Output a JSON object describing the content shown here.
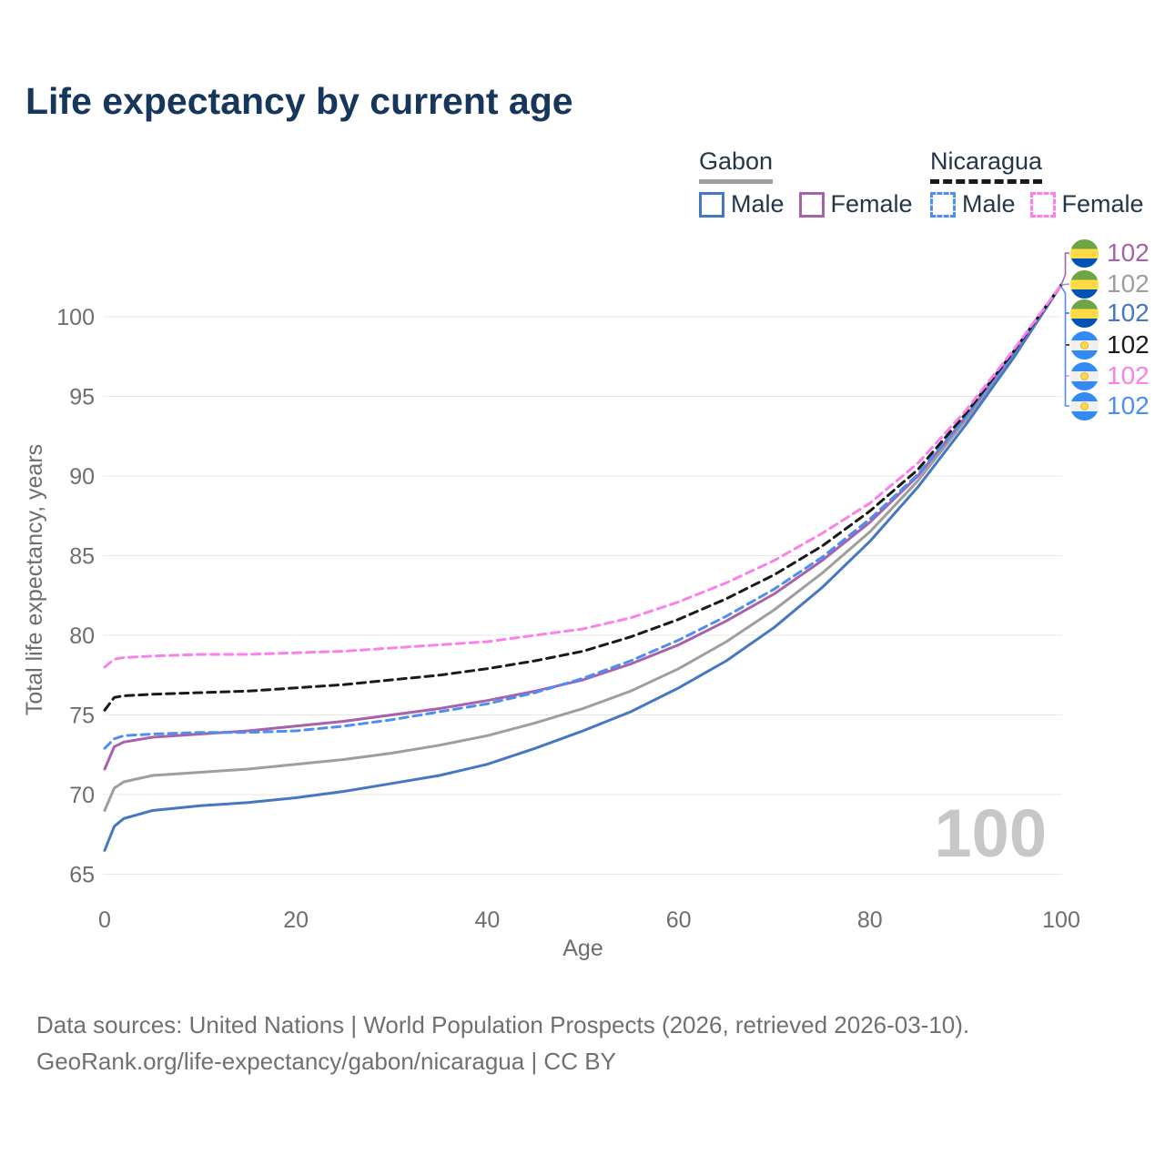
{
  "title": "Life expectancy by current age",
  "legend": {
    "groups": [
      {
        "name": "Gabon",
        "line_style": "solid",
        "underline_color": "#9e9e9e",
        "items": [
          {
            "label": "Male",
            "color": "#4577c2"
          },
          {
            "label": "Female",
            "color": "#a763a8"
          }
        ]
      },
      {
        "name": "Nicaragua",
        "line_style": "dashed",
        "underline_color": "#1a1a1a",
        "items": [
          {
            "label": "Male",
            "color": "#4d8df5"
          },
          {
            "label": "Female",
            "color": "#fb80e8"
          }
        ]
      }
    ]
  },
  "chart_data": {
    "type": "line",
    "title": "Life expectancy by current age",
    "xlabel": "Age",
    "ylabel": "Total life expectancy, years",
    "xlim": [
      0,
      100
    ],
    "ylim": [
      65,
      102.5
    ],
    "xticks": [
      0,
      20,
      40,
      60,
      80,
      100
    ],
    "yticks": [
      65,
      70,
      75,
      80,
      85,
      90,
      95,
      100
    ],
    "grid": true,
    "legend_position": "top-right",
    "watermark": "100",
    "x": [
      0,
      1,
      2,
      5,
      10,
      15,
      20,
      25,
      30,
      35,
      40,
      45,
      50,
      55,
      60,
      65,
      70,
      75,
      80,
      85,
      90,
      95,
      100
    ],
    "series": [
      {
        "id": "gabon-all",
        "name": "Gabon (both sexes)",
        "country": "Gabon",
        "flag": "gabon",
        "color": "#9e9e9e",
        "line_style": "solid",
        "end_label": "102",
        "values": [
          69.0,
          70.4,
          70.8,
          71.2,
          71.4,
          71.6,
          71.9,
          72.2,
          72.6,
          73.1,
          73.7,
          74.5,
          75.4,
          76.5,
          77.9,
          79.6,
          81.6,
          83.9,
          86.5,
          89.7,
          93.5,
          97.6,
          102
        ]
      },
      {
        "id": "gabon-male",
        "name": "Gabon Male",
        "country": "Gabon",
        "flag": "gabon",
        "color": "#4577c2",
        "line_style": "solid",
        "end_label": "102",
        "values": [
          66.5,
          68.0,
          68.5,
          69.0,
          69.3,
          69.5,
          69.8,
          70.2,
          70.7,
          71.2,
          71.9,
          72.9,
          74.0,
          75.2,
          76.7,
          78.4,
          80.5,
          83.0,
          85.9,
          89.3,
          93.2,
          97.4,
          102
        ]
      },
      {
        "id": "gabon-female",
        "name": "Gabon Female",
        "country": "Gabon",
        "flag": "gabon",
        "color": "#a763a8",
        "line_style": "solid",
        "end_label": "102",
        "values": [
          71.6,
          73.0,
          73.3,
          73.6,
          73.8,
          74.0,
          74.3,
          74.6,
          75.0,
          75.4,
          75.9,
          76.5,
          77.2,
          78.2,
          79.4,
          80.9,
          82.6,
          84.7,
          87.1,
          90.0,
          93.7,
          97.7,
          102
        ]
      },
      {
        "id": "nicaragua-male",
        "name": "Nicaragua Male",
        "country": "Nicaragua",
        "flag": "nicaragua",
        "color": "#4d8df5",
        "line_style": "dashed",
        "end_label": "102",
        "values": [
          72.9,
          73.5,
          73.7,
          73.8,
          73.9,
          73.9,
          74.0,
          74.3,
          74.7,
          75.2,
          75.7,
          76.4,
          77.3,
          78.4,
          79.7,
          81.2,
          82.9,
          84.9,
          87.3,
          90.1,
          93.7,
          97.7,
          102
        ]
      },
      {
        "id": "nicaragua-all",
        "name": "Nicaragua (both sexes)",
        "country": "Nicaragua",
        "flag": "nicaragua",
        "color": "#1a1a1a",
        "line_style": "dashed",
        "end_label": "102",
        "values": [
          75.3,
          76.1,
          76.2,
          76.3,
          76.4,
          76.5,
          76.7,
          76.9,
          77.2,
          77.5,
          77.9,
          78.4,
          79.0,
          79.9,
          81.0,
          82.3,
          83.8,
          85.6,
          87.8,
          90.4,
          93.9,
          97.8,
          102
        ]
      },
      {
        "id": "nicaragua-female",
        "name": "Nicaragua Female",
        "country": "Nicaragua",
        "flag": "nicaragua",
        "color": "#fb80e8",
        "line_style": "dashed",
        "end_label": "102",
        "values": [
          78.0,
          78.5,
          78.6,
          78.7,
          78.8,
          78.8,
          78.9,
          79.0,
          79.2,
          79.4,
          79.6,
          80.0,
          80.4,
          81.1,
          82.1,
          83.3,
          84.7,
          86.4,
          88.3,
          90.8,
          94.1,
          97.9,
          102
        ]
      }
    ],
    "end_labels": [
      {
        "series": "Gabon Female",
        "flag": "gabon",
        "color": "#a763a8",
        "value": "102"
      },
      {
        "series": "Gabon (both sexes)",
        "flag": "gabon",
        "color": "#9e9e9e",
        "value": "102"
      },
      {
        "series": "Gabon Male",
        "flag": "gabon",
        "color": "#4577c2",
        "value": "102"
      },
      {
        "series": "Nicaragua (both sexes)",
        "flag": "nicaragua",
        "color": "#1a1a1a",
        "value": "102"
      },
      {
        "series": "Nicaragua Female",
        "flag": "nicaragua",
        "color": "#fb80e8",
        "value": "102"
      },
      {
        "series": "Nicaragua Male",
        "flag": "nicaragua",
        "color": "#4d8df5",
        "value": "102"
      }
    ]
  },
  "footer": {
    "line1": "Data sources: United Nations | World Population Prospects (2026, retrieved 2026-03-10).",
    "line2": "GeoRank.org/life-expectancy/gabon/nicaragua | CC BY"
  }
}
